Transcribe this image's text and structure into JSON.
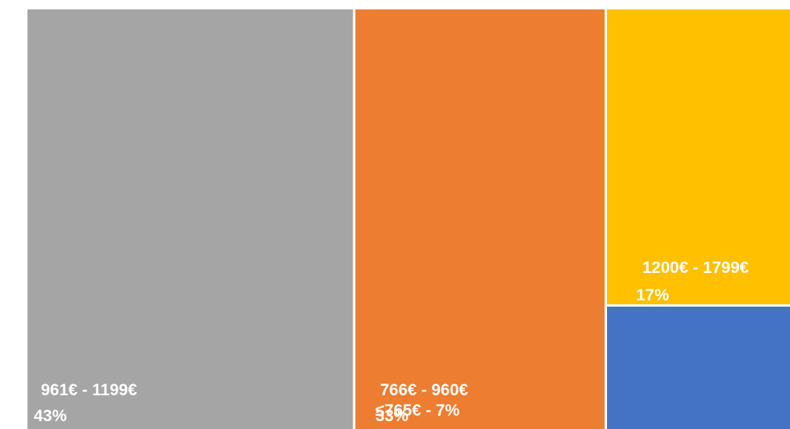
{
  "chart_data": {
    "type": "treemap",
    "title": "",
    "colors_matter": true,
    "segments": [
      {
        "range_label": "961€ - 1199€",
        "percent_label": "43%",
        "value": 43,
        "color": "#a5a5a5"
      },
      {
        "range_label": "766€ - 960€",
        "percent_label": "33%",
        "value": 33,
        "color": "#ed7d31"
      },
      {
        "range_label": "1200€ - 1799€",
        "percent_label": "17%",
        "value": 17,
        "color": "#ffc000"
      },
      {
        "range_label": "≤765€ - 7%",
        "percent_label": "",
        "value": 7,
        "color": "#4472c4"
      }
    ]
  }
}
